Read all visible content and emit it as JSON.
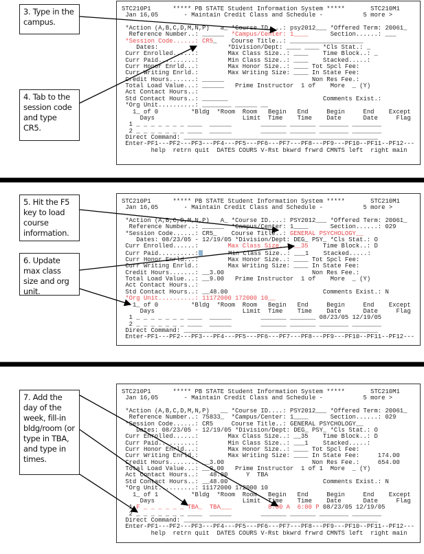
{
  "accent_color": "#e8464a",
  "panels": [
    {
      "callouts": [
        "3. Type in the campus.",
        "4. Tab to the session code and type CR5."
      ],
      "lines": [
        "STC210P1      ***** PB STATE Student Information System *****       STC210M1",
        " Jan 16,05       - Maintain Credit Class and Schedule -           5 more >",
        "",
        " *Action (A,B,C,D,M,N,P)   a_ *Course ID....: psy2012___ *Offered Term: 20061_",
        [
          {
            "t": "  Reference Number..: ______  "
          },
          {
            "t": "*Campus/Center: 1____",
            "hl": true
          },
          {
            "t": "      Section......: ___"
          }
        ],
        [
          {
            "t": " "
          },
          {
            "t": "*Session Code......: CR5",
            "hl": true
          },
          {
            "t": "_    Course Title..: ____________________"
          }
        ],
        "    Dates:                   *Division/Dept: ____ ____ *Cls Stat.: _",
        " Curr Enrolled......:        Max Class Size..: ____    Time Block..: _",
        " Curr Paid..........:        Min Class Size..: ____    Stacked.....:",
        " Curr Honor Enrld...:        Max Honor Size..: ____ Tot Spcl Fee:",
        " Curr Writing Enrld.:        Max Writing Size: ____ In State Fee:",
        " Credit Hours.......: ______                        Non Res Fee.:",
        " Total Load Value...: ______   Prime Instructor  1 of    More  _ (Y)",
        " Act Contact Hours..:",
        " Std Contact Hours..: _______                          Comments Exist.:",
        " *Org Unit..........: ________ ______ __",
        "   1_ of 0         *Bldg  *Room  Room   Begin   End     Begin     End    Except",
        "     Days                        Limit  Time    Time    Date      Date     Flag",
        "  1 _ _ _ _ _ _ _ ____  ______        _______ _______ ________ ________",
        "  2 _ _ _ _ _ _ _ ____  ______        _______ _______ ________ ________",
        " Direct Command: _____________________________________________________",
        " Enter-PF1---PF2---PF3---PF4---PF5---PF6---PF7---PF8---PF9---PF10--PF11--PF12---",
        "        help  retrn quit  DATES COURS V-Rst bkwrd frwrd CMNTS left  right main"
      ]
    },
    {
      "callouts": [
        "5. Hit the F5 key to load course information.",
        "6. Update max class size and org unit."
      ],
      "lines": [
        "STC210P1      ***** PB STATE Student Information System *****       STC210M1",
        " Jan 16,05       - Maintain Credit Class and Schedule -           5 more >",
        "",
        " *Action (A,B,C,D,M,N,P)   A_ *Course ID....: PSY2012___ *Offered Term: 20061_",
        "  Reference Number..: ______  *Campus/Center: 1____      Section......: 029",
        [
          {
            "t": " *Session Code......: CR5_    Course Title..: "
          },
          {
            "t": "GENERAL PSYCHOLOGY__",
            "hl": true
          }
        ],
        "    Dates: 08/23/05 - 12/19/05 *Division/Dept: DEG_ PSY_ *Cls Stat.: O",
        [
          {
            "t": " Curr Enrolled......:        "
          },
          {
            "t": "Max Class Size..: __35",
            "hl": true
          },
          {
            "t": "    Time Block..: D"
          }
        ],
        [
          {
            "t": " Curr Paid..........:"
          },
          {
            "t": "",
            "cursor": true
          },
          {
            "t": "       Min Class Size..: ___1    Stacked.....:"
          }
        ],
        " Curr Honor Enrld...:        Max Honor Size..: ____ Tot Spcl Fee:",
        " Curr Writing Enrld.:        Max Writing Size: ____ In State Fee:",
        " Credit Hours.......: __3.00                        Non Res Fee.:",
        " Total Load Value...: __9.00   Prime Instructor  1 of    More  _ (Y)",
        " Act Contact Hours..:",
        " Std Contact Hours..: __48.00                          Comments Exist.: N",
        [
          {
            "t": " "
          },
          {
            "t": "*Org Unit..........: 11172000 172000 10__",
            "hl": true
          }
        ],
        "   1_ of 0         *Bldg  *Room  Room   Begin   End     Begin     End    Except",
        "     Days                        Limit  Time    Time    Date      Date     Flag",
        "  1 _ _ _ _ _ _ _ ____  ______        _______ _______ 08/23/05 12/19/05",
        "  2 _ _ _ _ _ _ _ ____  ______        _______ _______ ________ ________",
        " Direct Command: _____________________________________________________",
        " Enter-PF1---PF2---PF3---PF4---PF5---PF6---PF7---PF8---PF9---PF10--PF11--PF12---"
      ]
    },
    {
      "callouts": [
        "7. Add the day of the week, fill-in bldg/room (or type in TBA, and type in times."
      ],
      "lines": [
        "STC210P1      ***** PB STATE Student Information System *****       STC210M1",
        " Jan 16,05       - Maintain Credit Class and Schedule -           5 more >",
        "",
        " *Action (A,B,C,D,M,N,P)   __ *Course ID....: PSY2012___ *Offered Term: 20061_",
        "  Reference Number..: 75833_  *Campus/Center: 1____      Section......: 029",
        " *Session Code......: CR5     Course Title..: GENERAL PSYCHOLOGY__",
        "    Dates: 08/23/05 - 12/19/05 *Division/Dept: DEG_ PSY_ *Cls Stat.: O",
        " Curr Enrolled......:        Max Class Size..: __35    Time Block..: D",
        " Curr Paid..........:        Min Class Size..: ___1    Stacked.....:",
        " Curr Honor Enrld...:        Max Honor Size..: ____ Tot Spcl Fee:",
        " Curr Writing Enrld.:        Max Writing Size: ____ In State Fee:     174.00",
        " Credit Hours.......: __3.00                        Non Res Fee.:     654.00",
        " Total Load Value...: __9.00   Prime Instructor  1 of 1  More  _ (Y)",
        " Act Contact Hours..:   48.00     Y  TBA",
        " Std Contact Hours..: __48.00                          Comments Exist.: N",
        " *Org Unit..........: 11172000 172000 10",
        "   1_ of 1         *Bldg  *Room  Room   Begin   End     Begin     End    Except",
        "     Days                        Limit  Time    Time    Date      Date     Flag",
        [
          {
            "t": "  1 "
          },
          {
            "t": "F _ _ _ _ _ _ TBA_  TBA___          8:00 A  6:00 P",
            "hl": true
          },
          {
            "t": " 08/23/05 12/19/05"
          }
        ],
        "  2 _ _ _ _ _ _ _ ____  ______        _______ _______ ________ ________",
        " Direct Command: _____________________________________________________",
        " Enter-PF1---PF2---PF3---PF4---PF5---PF6---PF7---PF8---PF9---PF10--PF11--PF12---",
        "        help  retrn quit  DATES COURS V-Rst bkwrd frwrd CMNTS left  right main"
      ]
    }
  ]
}
